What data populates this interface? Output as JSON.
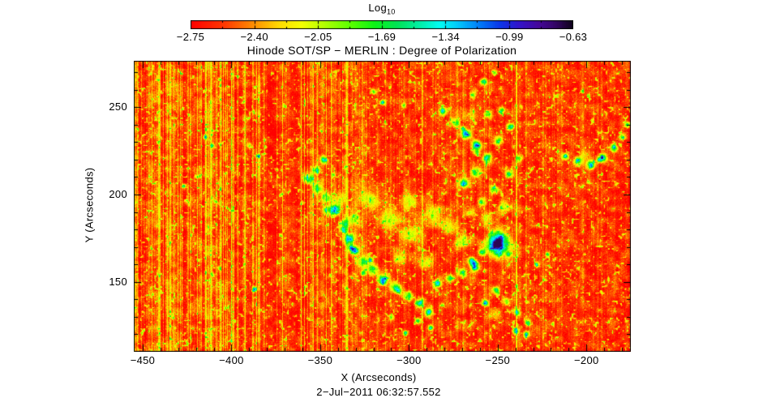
{
  "figure": {
    "title": "Hinode SOT/SP − MERLIN : Degree of Polarization",
    "timestamp": "2−Jul−2011 06:32:57.552",
    "background_color": "#ffffff",
    "text_color": "#000000"
  },
  "colorbar": {
    "title_main": "Log",
    "title_sub": "10",
    "tick_labels": [
      "−2.75",
      "−2.40",
      "−2.05",
      "−1.69",
      "−1.34",
      "−0.99",
      "−0.63"
    ],
    "min": -2.75,
    "max": -0.63
  },
  "chart_data": {
    "type": "heatmap",
    "title": "Hinode SOT/SP − MERLIN : Degree of Polarization",
    "xlabel": "X (Arcseconds)",
    "ylabel": "Y (Arcseconds)",
    "value_label": "Log10 Degree of Polarization",
    "x_range": [
      -455,
      -175
    ],
    "y_range": [
      110,
      276.5
    ],
    "x_major_ticks": [
      -450,
      -400,
      -350,
      -300,
      -250,
      -200
    ],
    "x_major_tick_labels": [
      "−450",
      "−400",
      "−350",
      "−300",
      "−250",
      "−200"
    ],
    "y_major_ticks": [
      250,
      200,
      150
    ],
    "y_major_tick_labels": [
      "250",
      "200",
      "150"
    ],
    "minor_tick_step": 10,
    "value_range": [
      -2.75,
      -0.63
    ],
    "background_level": -2.62,
    "grid": false,
    "legend_position": "top-colorbar",
    "colormap": [
      [
        0.0,
        "#ff0000"
      ],
      [
        0.09,
        "#ff3a00"
      ],
      [
        0.16,
        "#ff8a00"
      ],
      [
        0.23,
        "#ffd900"
      ],
      [
        0.29,
        "#f4ff00"
      ],
      [
        0.35,
        "#b0ff00"
      ],
      [
        0.42,
        "#57ff00"
      ],
      [
        0.48,
        "#0cf416"
      ],
      [
        0.54,
        "#00e455"
      ],
      [
        0.6,
        "#00f0a8"
      ],
      [
        0.65,
        "#00fdf2"
      ],
      [
        0.7,
        "#00c7fb"
      ],
      [
        0.76,
        "#0075f7"
      ],
      [
        0.81,
        "#0b35e8"
      ],
      [
        0.86,
        "#3313c9"
      ],
      [
        0.91,
        "#45089a"
      ],
      [
        0.955,
        "#330564"
      ],
      [
        1.0,
        "#0d0118"
      ]
    ],
    "features": {
      "sunspot": {
        "x": -250,
        "y": 172,
        "core_rx": 4.3,
        "core_ry": 5.2,
        "core_amp": 1.5,
        "collar_rx": 8.0,
        "collar_ry": 8.8,
        "collar_amp": 0.9
      },
      "network_blobs": [
        [
          -357,
          209,
          3.2
        ],
        [
          -352,
          204,
          3.0
        ],
        [
          -347,
          198,
          3.2
        ],
        [
          -342,
          191,
          3.4
        ],
        [
          -337,
          183,
          3.6
        ],
        [
          -334,
          175,
          3.4
        ],
        [
          -352,
          214,
          2.4
        ],
        [
          -348,
          220,
          2.2
        ],
        [
          -331,
          168,
          3.2
        ],
        [
          -326,
          162,
          3.4
        ],
        [
          -321,
          157,
          3.6
        ],
        [
          -315,
          152,
          3.8
        ],
        [
          -308,
          147,
          3.6
        ],
        [
          -301,
          142,
          3.2
        ],
        [
          -294,
          138,
          2.8
        ],
        [
          -289,
          133,
          2.4
        ],
        [
          -284,
          149,
          2.6
        ],
        [
          -277,
          152,
          2.6
        ],
        [
          -270,
          155,
          2.6
        ],
        [
          -263,
          158,
          2.6
        ],
        [
          -265,
          162,
          2.4
        ],
        [
          -259,
          167,
          2.2
        ],
        [
          -251,
          145,
          2.4
        ],
        [
          -245,
          139,
          2.4
        ],
        [
          -239,
          133,
          2.2
        ],
        [
          -257,
          138,
          2.0
        ],
        [
          -233,
          127,
          2.0
        ],
        [
          -240,
          122,
          1.8
        ],
        [
          -295,
          128,
          2.0
        ],
        [
          -288,
          124,
          1.8
        ],
        [
          -302,
          121,
          1.6
        ],
        [
          -310,
          130,
          1.8
        ],
        [
          -281,
          248,
          2.8
        ],
        [
          -274,
          242,
          3.0
        ],
        [
          -268,
          235,
          3.2
        ],
        [
          -262,
          228,
          3.4
        ],
        [
          -256,
          221,
          3.4
        ],
        [
          -262,
          213,
          3.0
        ],
        [
          -269,
          207,
          2.8
        ],
        [
          -250,
          231,
          3.0
        ],
        [
          -243,
          239,
          2.6
        ],
        [
          -248,
          248,
          2.4
        ],
        [
          -256,
          246,
          2.6
        ],
        [
          -238,
          221,
          2.4
        ],
        [
          -244,
          212,
          2.6
        ],
        [
          -252,
          203,
          2.6
        ],
        [
          -259,
          196,
          2.6
        ],
        [
          -266,
          190,
          2.4
        ],
        [
          -258,
          265,
          2.2
        ],
        [
          -252,
          270,
          2.0
        ],
        [
          -264,
          257,
          2.2
        ],
        [
          -320,
          259,
          1.8
        ],
        [
          -315,
          253,
          1.6
        ],
        [
          -303,
          251,
          1.5
        ],
        [
          -212,
          222,
          2.2
        ],
        [
          -205,
          219,
          2.6
        ],
        [
          -198,
          217,
          3.0
        ],
        [
          -191,
          221,
          3.0
        ],
        [
          -185,
          227,
          2.6
        ],
        [
          -180,
          233,
          2.2
        ],
        [
          -177,
          240,
          2.0
        ],
        [
          -411,
          228,
          1.5
        ],
        [
          -415,
          233,
          1.4
        ],
        [
          -390,
          228,
          1.8
        ],
        [
          -385,
          222,
          1.5
        ],
        [
          -387,
          146,
          1.5
        ],
        [
          -427,
          205,
          1.3
        ],
        [
          -228,
          160,
          1.8
        ],
        [
          -222,
          166,
          1.6
        ],
        [
          -234,
          120,
          1.8
        ]
      ],
      "deep_blobs": [
        [
          -333,
          170,
          1.8
        ],
        [
          -322,
          163,
          2.0
        ],
        [
          -315,
          150,
          2.0
        ],
        [
          -306,
          145,
          1.8
        ],
        [
          -326,
          155,
          1.6
        ],
        [
          -263,
          161,
          1.9
        ],
        [
          -262,
          224,
          1.8
        ],
        [
          -270,
          238,
          1.6
        ],
        [
          -244,
          166,
          1.7
        ],
        [
          -193,
          220,
          1.6
        ],
        [
          -337,
          180,
          1.5
        ]
      ],
      "moat_blobs": [
        [
          -312,
          186,
          7.5
        ],
        [
          -299,
          178,
          6.5
        ],
        [
          -287,
          189,
          6.0
        ],
        [
          -322,
          197,
          5.5
        ],
        [
          -277,
          182,
          5.0
        ],
        [
          -339,
          197,
          4.5
        ],
        [
          -346,
          191,
          3.6
        ],
        [
          -305,
          164,
          4.5
        ],
        [
          -291,
          161,
          4.5
        ],
        [
          -270,
          173,
          4.5
        ],
        [
          -257,
          187,
          4.0
        ],
        [
          -247,
          193,
          3.6
        ],
        [
          -300,
          196,
          5.5
        ],
        [
          -331,
          186,
          4.0
        ],
        [
          -265,
          247,
          4.0,
          0.3
        ],
        [
          -200,
          222,
          4.0,
          0.3
        ],
        [
          -252,
          132,
          4.0,
          0.3
        ]
      ],
      "bright_columns": [
        -425,
        -409,
        -393,
        -344,
        -293,
        -273,
        -240
      ],
      "noise_seed": 7
    }
  }
}
